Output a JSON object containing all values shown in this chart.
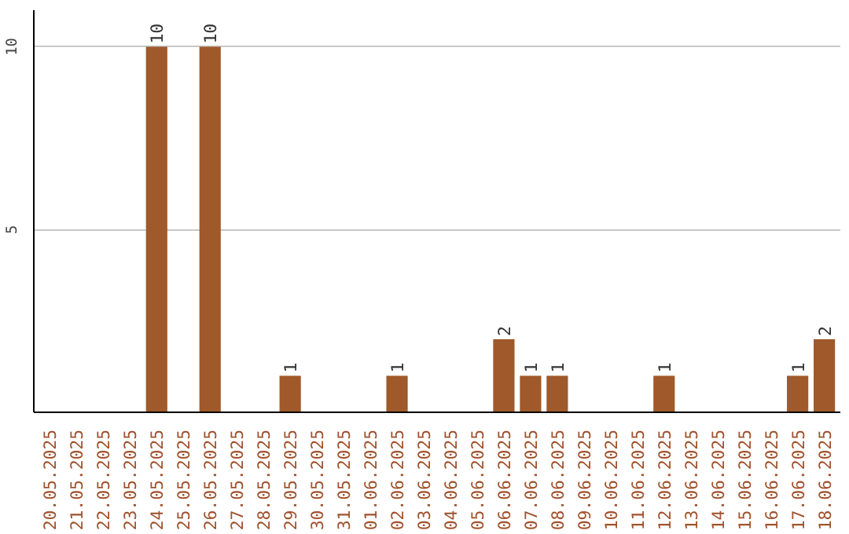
{
  "chart_data": {
    "type": "bar",
    "categories": [
      "20.05.2025",
      "21.05.2025",
      "22.05.2025",
      "23.05.2025",
      "24.05.2025",
      "25.05.2025",
      "26.05.2025",
      "27.05.2025",
      "28.05.2025",
      "29.05.2025",
      "30.05.2025",
      "31.05.2025",
      "01.06.2025",
      "02.06.2025",
      "03.06.2025",
      "04.06.2025",
      "05.06.2025",
      "06.06.2025",
      "07.06.2025",
      "08.06.2025",
      "09.06.2025",
      "10.06.2025",
      "11.06.2025",
      "12.06.2025",
      "13.06.2025",
      "14.06.2025",
      "15.06.2025",
      "16.06.2025",
      "17.06.2025",
      "18.06.2025"
    ],
    "values": [
      0,
      0,
      0,
      0,
      10,
      0,
      10,
      0,
      0,
      1,
      0,
      0,
      0,
      1,
      0,
      0,
      0,
      2,
      1,
      1,
      0,
      0,
      0,
      1,
      0,
      0,
      0,
      0,
      1,
      2
    ],
    "value_labels": [
      null,
      null,
      null,
      null,
      "10",
      null,
      "10",
      null,
      null,
      "1",
      null,
      null,
      null,
      "1",
      null,
      null,
      null,
      "2",
      "1",
      "1",
      null,
      null,
      null,
      "1",
      null,
      null,
      null,
      null,
      "1",
      "2"
    ],
    "color": "#a0592a",
    "ylim": [
      0,
      11
    ],
    "yticks": [
      5,
      10
    ],
    "grid": "y"
  }
}
